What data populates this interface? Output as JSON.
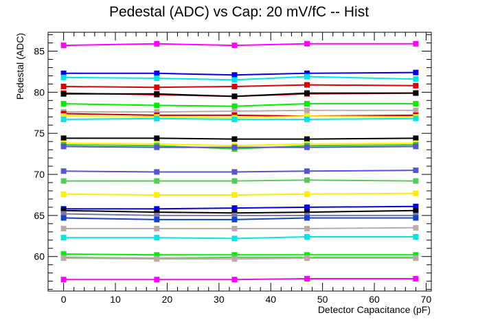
{
  "chart_data": {
    "type": "line",
    "title": "Pedestal (ADC) vs Cap: 20 mV/fC -- Hist",
    "xlabel": "Detector Capacitance (pF)",
    "ylabel": "Pedestal (ADC)",
    "xlim": [
      -3,
      71
    ],
    "ylim": [
      55.8,
      87.3
    ],
    "xticks": [
      0,
      10,
      20,
      30,
      40,
      50,
      60,
      70
    ],
    "yticks": [
      60,
      65,
      70,
      75,
      80,
      85
    ],
    "grid": false,
    "legend": "none",
    "x": [
      0,
      18,
      33,
      47,
      68
    ],
    "series": [
      {
        "color": "#ff00ff",
        "values": [
          85.7,
          85.9,
          85.7,
          85.9,
          85.9
        ]
      },
      {
        "color": "#0000ee",
        "values": [
          82.3,
          82.3,
          82.1,
          82.3,
          82.4
        ]
      },
      {
        "color": "#00e5e5",
        "values": [
          81.8,
          81.7,
          81.5,
          81.9,
          81.6
        ]
      },
      {
        "color": "#dd0000",
        "values": [
          80.7,
          80.6,
          80.7,
          80.9,
          80.8
        ]
      },
      {
        "color": "#ff0000",
        "values": [
          79.9,
          79.7,
          79.5,
          79.8,
          79.9
        ]
      },
      {
        "color": "#000000",
        "values": [
          79.8,
          79.8,
          79.5,
          79.9,
          79.9
        ]
      },
      {
        "color": "#00ee00",
        "values": [
          78.6,
          78.4,
          78.3,
          78.6,
          78.6
        ]
      },
      {
        "color": "#bbaaaa",
        "values": [
          77.6,
          77.6,
          77.7,
          77.8,
          77.8
        ]
      },
      {
        "color": "#cc0000",
        "values": [
          77.4,
          77.2,
          77.2,
          77.1,
          77.2
        ]
      },
      {
        "color": "#ffee00",
        "values": [
          77.1,
          77.0,
          76.9,
          77.1,
          77.0
        ]
      },
      {
        "color": "#00e5e5",
        "values": [
          76.7,
          76.8,
          76.7,
          76.7,
          76.8
        ]
      },
      {
        "color": "#000000",
        "values": [
          74.4,
          74.4,
          74.3,
          74.3,
          74.4
        ]
      },
      {
        "color": "#ffee00",
        "values": [
          73.8,
          73.7,
          73.5,
          73.7,
          73.8
        ]
      },
      {
        "color": "#33cc33",
        "values": [
          73.6,
          73.5,
          73.1,
          73.5,
          73.6
        ]
      },
      {
        "color": "#5555cc",
        "values": [
          73.4,
          73.3,
          73.3,
          73.3,
          73.4
        ]
      },
      {
        "color": "#5555cc",
        "values": [
          70.4,
          70.3,
          70.3,
          70.4,
          70.5
        ]
      },
      {
        "color": "#55cc55",
        "values": [
          69.2,
          69.2,
          69.2,
          69.3,
          69.2
        ]
      },
      {
        "color": "#ffee00",
        "values": [
          67.6,
          67.5,
          67.5,
          67.6,
          67.7
        ]
      },
      {
        "color": "#0000ee",
        "values": [
          65.8,
          65.8,
          65.9,
          66.0,
          66.1
        ]
      },
      {
        "color": "#000000",
        "values": [
          65.6,
          65.4,
          65.3,
          65.4,
          65.6
        ]
      },
      {
        "color": "#7777aa",
        "values": [
          65.2,
          65.0,
          65.0,
          65.0,
          65.0
        ]
      },
      {
        "color": "#1144cc",
        "values": [
          64.7,
          64.5,
          64.5,
          64.7,
          64.7
        ]
      },
      {
        "color": "#bbaaaa",
        "values": [
          63.4,
          63.4,
          63.4,
          63.4,
          63.5
        ]
      },
      {
        "color": "#00e5e5",
        "values": [
          62.3,
          62.3,
          62.2,
          62.4,
          62.4
        ]
      },
      {
        "color": "#00ee00",
        "values": [
          60.3,
          60.2,
          60.2,
          60.2,
          60.2
        ]
      },
      {
        "color": "#55cc55",
        "values": [
          59.9,
          59.8,
          59.9,
          59.9,
          59.9
        ]
      },
      {
        "color": "#bbaaaa",
        "values": [
          59.8,
          59.7,
          59.7,
          59.8,
          59.8
        ]
      },
      {
        "color": "#ff00ff",
        "values": [
          57.2,
          57.2,
          57.2,
          57.3,
          57.3
        ]
      }
    ]
  }
}
